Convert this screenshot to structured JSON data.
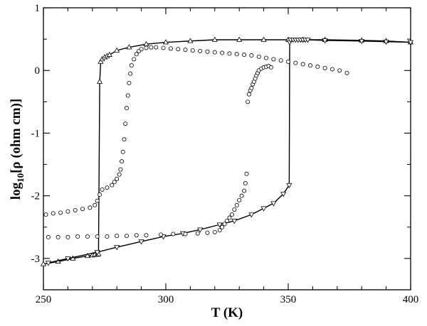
{
  "chart_data": {
    "type": "scatter",
    "title": "",
    "xlabel": "T (K)",
    "ylabel_parts": {
      "main": "log",
      "sub": "10",
      "rest": "[ρ (ohm cm)]"
    },
    "xlim": [
      250,
      400
    ],
    "ylim": [
      -3.5,
      1
    ],
    "xticks": [
      250,
      300,
      350,
      400
    ],
    "yticks": [
      -3,
      -2,
      -1,
      0,
      1
    ],
    "grid": false,
    "legend": "none",
    "series": [
      {
        "marker": "triangle-up",
        "line": true,
        "points": [
          [
            250,
            -3.09
          ],
          [
            256,
            -3.05
          ],
          [
            262,
            -3.0
          ],
          [
            268,
            -2.96
          ],
          [
            270,
            -2.95
          ],
          [
            271,
            -2.94
          ],
          [
            272,
            -2.94
          ],
          [
            272.5,
            -2.93
          ],
          [
            273,
            -0.18
          ],
          [
            273.4,
            0.14
          ],
          [
            274,
            0.18
          ],
          [
            275,
            0.21
          ],
          [
            276,
            0.23
          ],
          [
            277,
            0.25
          ],
          [
            280,
            0.32
          ],
          [
            285,
            0.37
          ],
          [
            292,
            0.42
          ],
          [
            300,
            0.45
          ],
          [
            310,
            0.47
          ],
          [
            320,
            0.49
          ],
          [
            330,
            0.49
          ],
          [
            340,
            0.49
          ],
          [
            350,
            0.49
          ],
          [
            356,
            0.49
          ],
          [
            365,
            0.49
          ],
          [
            380,
            0.48
          ],
          [
            390,
            0.47
          ],
          [
            400,
            0.45
          ]
        ]
      },
      {
        "marker": "triangle-down",
        "line": true,
        "points": [
          [
            252,
            -3.07
          ],
          [
            260,
            -3.0
          ],
          [
            272,
            -2.9
          ],
          [
            280,
            -2.82
          ],
          [
            290,
            -2.73
          ],
          [
            299,
            -2.65
          ],
          [
            307,
            -2.6
          ],
          [
            314,
            -2.54
          ],
          [
            322,
            -2.46
          ],
          [
            328,
            -2.4
          ],
          [
            335,
            -2.3
          ],
          [
            340,
            -2.2
          ],
          [
            344,
            -2.12
          ],
          [
            348,
            -1.97
          ],
          [
            350.4,
            -1.83
          ],
          [
            350.6,
            0.45
          ],
          [
            351,
            0.49
          ],
          [
            352,
            0.49
          ],
          [
            353,
            0.49
          ],
          [
            354,
            0.49
          ],
          [
            355,
            0.49
          ],
          [
            356,
            0.49
          ],
          [
            357,
            0.49
          ],
          [
            358,
            0.49
          ],
          [
            365,
            0.48
          ],
          [
            380,
            0.47
          ],
          [
            390,
            0.46
          ],
          [
            400,
            0.45
          ]
        ]
      },
      {
        "marker": "circle",
        "line": false,
        "points": [
          [
            251,
            -2.3
          ],
          [
            254,
            -2.28
          ],
          [
            257,
            -2.27
          ],
          [
            260,
            -2.25
          ],
          [
            263,
            -2.23
          ],
          [
            266,
            -2.21
          ],
          [
            269,
            -2.19
          ],
          [
            271,
            -2.15
          ],
          [
            272,
            -2.08
          ],
          [
            273,
            -1.98
          ],
          [
            274,
            -1.9
          ],
          [
            276,
            -1.87
          ],
          [
            278,
            -1.83
          ],
          [
            279,
            -1.78
          ],
          [
            280,
            -1.73
          ],
          [
            281,
            -1.66
          ],
          [
            281.5,
            -1.58
          ],
          [
            282,
            -1.45
          ],
          [
            282.5,
            -1.3
          ],
          [
            283,
            -1.1
          ],
          [
            283.5,
            -0.85
          ],
          [
            284,
            -0.6
          ],
          [
            284.5,
            -0.4
          ],
          [
            285,
            -0.2
          ],
          [
            285.5,
            -0.05
          ],
          [
            286,
            0.08
          ],
          [
            287,
            0.18
          ],
          [
            288,
            0.26
          ],
          [
            289,
            0.31
          ],
          [
            290,
            0.34
          ],
          [
            292,
            0.36
          ],
          [
            294,
            0.37
          ],
          [
            296,
            0.37
          ],
          [
            299,
            0.36
          ],
          [
            302,
            0.35
          ],
          [
            305,
            0.34
          ],
          [
            308,
            0.33
          ],
          [
            311,
            0.32
          ],
          [
            314,
            0.31
          ],
          [
            317,
            0.3
          ],
          [
            320,
            0.29
          ],
          [
            323,
            0.28
          ],
          [
            326,
            0.27
          ],
          [
            329,
            0.26
          ],
          [
            332,
            0.25
          ],
          [
            335,
            0.24
          ],
          [
            338,
            0.22
          ],
          [
            341,
            0.2
          ],
          [
            344,
            0.18
          ],
          [
            347,
            0.16
          ],
          [
            350,
            0.14
          ],
          [
            353,
            0.12
          ],
          [
            356,
            0.1
          ],
          [
            359,
            0.08
          ],
          [
            362,
            0.06
          ],
          [
            365,
            0.04
          ],
          [
            368,
            0.02
          ],
          [
            371,
            0.0
          ],
          [
            374,
            -0.04
          ]
        ]
      },
      {
        "marker": "circle",
        "line": false,
        "points": [
          [
            252,
            -2.66
          ],
          [
            256,
            -2.66
          ],
          [
            260,
            -2.66
          ],
          [
            264,
            -2.65
          ],
          [
            268,
            -2.65
          ],
          [
            272,
            -2.65
          ],
          [
            276,
            -2.65
          ],
          [
            280,
            -2.64
          ],
          [
            284,
            -2.64
          ],
          [
            288,
            -2.63
          ],
          [
            292,
            -2.63
          ],
          [
            298,
            -2.62
          ],
          [
            303,
            -2.61
          ],
          [
            308,
            -2.61
          ],
          [
            313,
            -2.6
          ],
          [
            317,
            -2.59
          ],
          [
            320,
            -2.58
          ],
          [
            322,
            -2.55
          ],
          [
            323,
            -2.5
          ],
          [
            324,
            -2.45
          ],
          [
            325,
            -2.4
          ],
          [
            326,
            -2.35
          ],
          [
            327,
            -2.3
          ],
          [
            328,
            -2.22
          ],
          [
            329,
            -2.15
          ],
          [
            330,
            -2.07
          ],
          [
            331,
            -2.0
          ],
          [
            332,
            -1.92
          ],
          [
            332.5,
            -1.8
          ],
          [
            333,
            -1.65
          ],
          [
            333.5,
            -0.5
          ],
          [
            334,
            -0.38
          ],
          [
            334.5,
            -0.32
          ],
          [
            335,
            -0.28
          ],
          [
            335.5,
            -0.22
          ],
          [
            336,
            -0.18
          ],
          [
            336.5,
            -0.13
          ],
          [
            337,
            -0.08
          ],
          [
            337.5,
            -0.04
          ],
          [
            338,
            0.0
          ],
          [
            339,
            0.03
          ],
          [
            340,
            0.05
          ],
          [
            341,
            0.06
          ],
          [
            342,
            0.07
          ],
          [
            343,
            0.05
          ]
        ]
      }
    ]
  }
}
